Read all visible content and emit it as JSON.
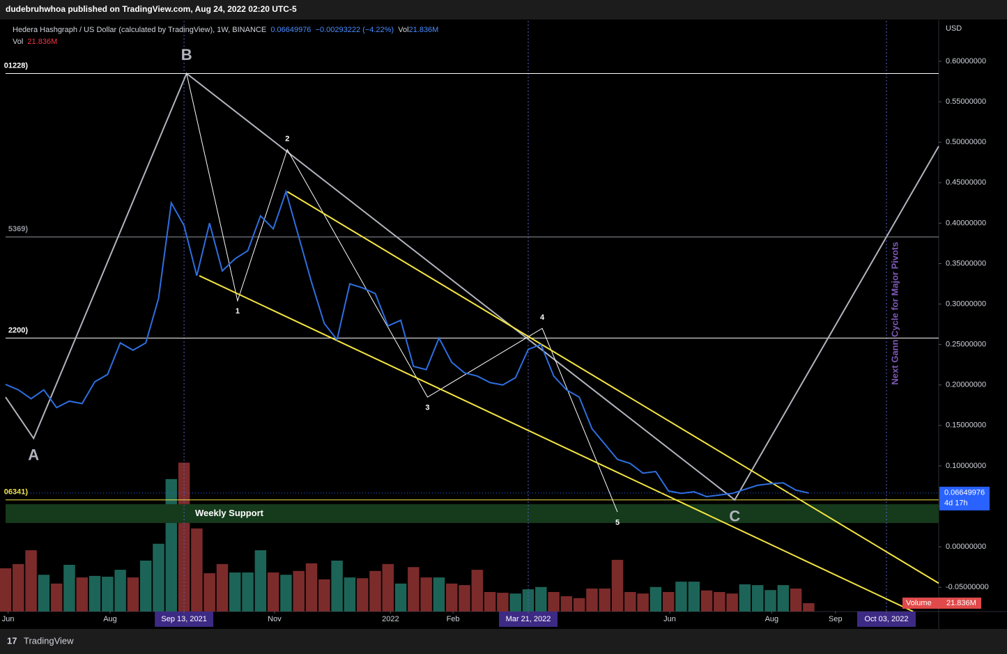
{
  "header": {
    "publisher": "dudebruhwhoa published on TradingView.com, Aug 24, 2022 02:20 UTC-5",
    "symbol": "Hedera Hashgraph / US Dollar (calculated by TradingView), 1W, BINANCE",
    "change": "−0.00293222 (−4.22%)",
    "vol_label": "Vol",
    "volume_text": "21.836M",
    "axis_unit": "USD",
    "countdown": "4d 17h",
    "volume_tag": "Volume",
    "footer": "TradingView"
  },
  "chart_data": [
    {
      "type": "line",
      "xlim": [
        0,
        73.2
      ],
      "ylim": [
        -0.08,
        0.65
      ],
      "xticks": [
        {
          "value": 0.2,
          "label": "Jun"
        },
        {
          "value": 8.2,
          "label": "Aug"
        },
        {
          "value": 14,
          "label": "Sep 13, 2021"
        },
        {
          "value": 21.1,
          "label": "Nov"
        },
        {
          "value": 30.2,
          "label": "2022"
        },
        {
          "value": 35.1,
          "label": "Feb"
        },
        {
          "value": 41,
          "label": "Mar 21, 2022"
        },
        {
          "value": 52.1,
          "label": "Jun"
        },
        {
          "value": 60.1,
          "label": "Aug"
        },
        {
          "value": 65.1,
          "label": "Sep"
        },
        {
          "value": 69.1,
          "label": "Oct 03, 2022"
        }
      ],
      "highlight_ticks": [
        2,
        6,
        10
      ],
      "yticks": [
        {
          "value": -0.05,
          "label": "-0.05000000"
        },
        {
          "value": 0,
          "label": "0.00000000"
        },
        {
          "value": 0.05,
          "label": "0.05000000"
        },
        {
          "value": 0.1,
          "label": "0.10000000"
        },
        {
          "value": 0.15,
          "label": "0.15000000"
        },
        {
          "value": 0.2,
          "label": "0.20000000"
        },
        {
          "value": 0.25,
          "label": "0.25000000"
        },
        {
          "value": 0.3,
          "label": "0.30000000"
        },
        {
          "value": 0.35,
          "label": "0.35000000"
        },
        {
          "value": 0.4,
          "label": "0.40000000"
        },
        {
          "value": 0.45,
          "label": "0.45000000"
        },
        {
          "value": 0.5,
          "label": "0.50000000"
        },
        {
          "value": 0.55,
          "label": "0.55000000"
        },
        {
          "value": 0.6,
          "label": "0.60000000"
        }
      ],
      "series": [
        {
          "color": "#2f6fe0",
          "values": [
            0.2007,
            0.194,
            0.183,
            0.194,
            0.172,
            0.18,
            0.177,
            0.204,
            0.213,
            0.252,
            0.243,
            0.252,
            0.307,
            0.425,
            0.397,
            0.335,
            0.4,
            0.341,
            0.356,
            0.366,
            0.409,
            0.393,
            0.439,
            0.383,
            0.327,
            0.276,
            0.256,
            0.325,
            0.32,
            0.313,
            0.273,
            0.28,
            0.223,
            0.219,
            0.258,
            0.228,
            0.215,
            0.211,
            0.203,
            0.2,
            0.209,
            0.244,
            0.25,
            0.211,
            0.194,
            0.185,
            0.146,
            0.127,
            0.108,
            0.103,
            0.091,
            0.093,
            0.069,
            0.066,
            0.068,
            0.062,
            0.064,
            0.066,
            0.071,
            0.076,
            0.078,
            0.079,
            0.07,
            0.06649976
          ]
        }
      ],
      "last_price": 0.06649976,
      "hlines": [
        {
          "value": 0.585,
          "color": "#ffffff",
          "label": "01228)"
        },
        {
          "value": 0.383,
          "color": "#9598a1",
          "label": "5369)"
        },
        {
          "value": 0.258,
          "color": "#ffffff",
          "label": "2200)"
        },
        {
          "value": 0.058,
          "color": "#f5e642",
          "label": "06341)"
        }
      ],
      "zone": {
        "from": 0.0294,
        "to": 0.0527,
        "color": "#163a1c",
        "label": "Weekly Support"
      },
      "drawings": [
        {
          "color": "#b2b5be",
          "width": 2,
          "label_size": 22,
          "x": [
            0,
            2.2,
            14.2,
            57.2,
            73.2
          ],
          "y": [
            0.185,
            0.134,
            0.585,
            0.058,
            0.495
          ],
          "labels": [
            null,
            "A",
            "B",
            "C",
            null
          ]
        },
        {
          "color": "#ffffff",
          "width": 1,
          "label_size": 11,
          "x": [
            14.2,
            18.2,
            22.1,
            33.1,
            42.1,
            48.0
          ],
          "y": [
            0.585,
            0.304,
            0.491,
            0.185,
            0.27,
            0.043
          ],
          "labels": [
            null,
            "1",
            "2",
            "3",
            "4",
            "5"
          ]
        },
        {
          "color": "#f5e642",
          "width": 2,
          "label_size": 11,
          "x": [
            22.1,
            73.2
          ],
          "y": [
            0.439,
            -0.045
          ],
          "labels": [
            null,
            null
          ]
        },
        {
          "color": "#f5e642",
          "width": 2,
          "label_size": 11,
          "x": [
            15.2,
            71.2
          ],
          "y": [
            0.335,
            -0.08
          ],
          "labels": [
            null,
            null
          ]
        }
      ],
      "cycle_note": "Next Gann Cycle for Major Pivots"
    },
    {
      "type": "bar",
      "ylim": [
        0,
        1543
      ],
      "values": [
        113,
        124,
        160,
        96,
        73,
        122,
        89,
        93,
        91,
        109,
        89,
        133,
        177,
        346,
        389,
        217,
        100,
        124,
        102,
        102,
        160,
        102,
        96,
        106,
        126,
        84,
        133,
        89,
        87,
        106,
        124,
        73,
        116,
        89,
        89,
        73,
        69,
        109,
        51,
        49,
        47,
        58,
        64,
        51,
        40,
        35,
        60,
        60,
        135,
        51,
        47,
        64,
        51,
        78,
        78,
        55,
        51,
        47,
        71,
        69,
        56,
        69,
        60,
        21.836
      ],
      "colors": [
        "r",
        "r",
        "r",
        "g",
        "r",
        "g",
        "r",
        "g",
        "g",
        "g",
        "r",
        "g",
        "g",
        "g",
        "r",
        "r",
        "r",
        "r",
        "g",
        "g",
        "g",
        "r",
        "g",
        "r",
        "r",
        "r",
        "g",
        "g",
        "r",
        "r",
        "r",
        "g",
        "r",
        "r",
        "g",
        "r",
        "r",
        "r",
        "r",
        "r",
        "g",
        "g",
        "g",
        "r",
        "r",
        "r",
        "r",
        "r",
        "r",
        "r",
        "r",
        "g",
        "r",
        "g",
        "g",
        "r",
        "r",
        "r",
        "g",
        "g",
        "g",
        "g",
        "r",
        "r"
      ],
      "palette": {
        "g": "#1d6458",
        "r": "#7c2b2b"
      }
    }
  ]
}
